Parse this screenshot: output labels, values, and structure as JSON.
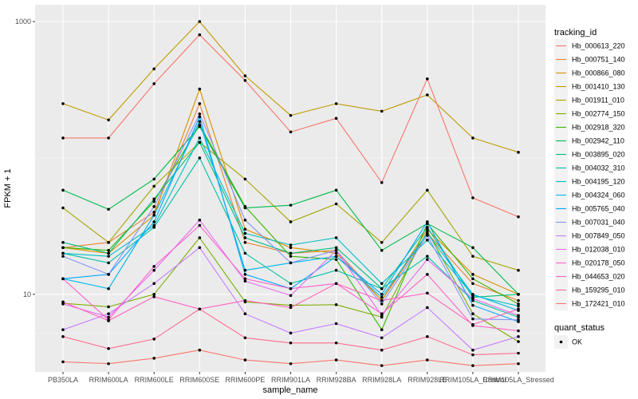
{
  "chart_data": {
    "type": "line",
    "title": "",
    "xlabel": "sample_name",
    "ylabel": "FPKM + 1",
    "y_scale": "log10",
    "ylim": [
      2.7,
      1000
    ],
    "y_ticks": [
      10,
      1000
    ],
    "y_tick_labels": [
      "10",
      "1000"
    ],
    "grid": true,
    "legend_placement": "right",
    "legend_title": "tracking_id",
    "categories": [
      "PB350LA",
      "RRIM600LA",
      "RRIM600LE",
      "RRIM600SE",
      "RRIM600PE",
      "RRIM901LA",
      "RRIM928BA",
      "RRIM928LA",
      "RRIM928LE",
      "RRIM105LA_Control",
      "RRIM105LA_Stressed"
    ],
    "series": [
      {
        "name": "Hb_000613_220",
        "color": "#F8766D",
        "values": [
          3.2,
          3.1,
          3.4,
          3.9,
          3.3,
          3.1,
          3.3,
          3.0,
          3.3,
          3.0,
          3.1
        ]
      },
      {
        "name": "Hb_000751_140",
        "color": "#EA8331",
        "values": [
          22,
          24,
          40,
          250,
          24,
          20,
          21,
          9,
          28,
          12,
          9
        ]
      },
      {
        "name": "Hb_000866_080",
        "color": "#D89000",
        "values": [
          22,
          20,
          38,
          320,
          30,
          22,
          20,
          9,
          30,
          14,
          10
        ]
      },
      {
        "name": "Hb_001410_130",
        "color": "#C09B00",
        "values": [
          250,
          190,
          450,
          1000,
          400,
          205,
          250,
          220,
          290,
          140,
          110
        ]
      },
      {
        "name": "Hb_001911_010",
        "color": "#A3A500",
        "values": [
          43,
          24,
          62,
          130,
          70,
          34,
          46,
          24,
          58,
          19,
          15
        ]
      },
      {
        "name": "Hb_002774_150",
        "color": "#7CAE00",
        "values": [
          8.6,
          8.1,
          10,
          26,
          8.8,
          8.3,
          8.4,
          6.8,
          29,
          7.2,
          4.5
        ]
      },
      {
        "name": "Hb_002918_320",
        "color": "#39B600",
        "values": [
          22,
          21,
          48,
          175,
          44,
          19,
          18,
          5.5,
          33,
          13,
          8.5
        ]
      },
      {
        "name": "Hb_002942_110",
        "color": "#00BB4E",
        "values": [
          58,
          42,
          70,
          170,
          43,
          45,
          58,
          21,
          33,
          22,
          10
        ]
      },
      {
        "name": "Hb_003895_020",
        "color": "#00BF7D",
        "values": [
          24,
          20,
          50,
          130,
          26,
          20,
          22,
          11,
          31,
          9.5,
          10
        ]
      },
      {
        "name": "Hb_004032_310",
        "color": "#00C1A3",
        "values": [
          20,
          17,
          31,
          100,
          20,
          12,
          15,
          11,
          19,
          9,
          6.8
        ]
      },
      {
        "name": "Hb_004195_120",
        "color": "#00BFC4",
        "values": [
          20,
          19,
          32,
          140,
          28,
          23,
          26,
          12,
          25,
          9.8,
          8.2
        ]
      },
      {
        "name": "Hb_004324_060",
        "color": "#00B8E7",
        "values": [
          13,
          11,
          38,
          185,
          15,
          17,
          19,
          9.5,
          28,
          10,
          7.6
        ]
      },
      {
        "name": "Hb_005765_040",
        "color": "#00A9FF",
        "values": [
          13,
          14,
          34,
          200,
          14,
          11,
          19,
          10,
          34,
          8.3,
          6.3
        ]
      },
      {
        "name": "Hb_007031_040",
        "color": "#8494FF",
        "values": [
          19,
          14,
          44,
          210,
          35,
          17,
          21,
          8.5,
          27,
          6.6,
          6.5
        ]
      },
      {
        "name": "Hb_007849_050",
        "color": "#C77CFF",
        "values": [
          5.5,
          7.2,
          12,
          22,
          7.2,
          5.2,
          6.1,
          4.8,
          8,
          3.9,
          4.9
        ]
      },
      {
        "name": "Hb_012038_010",
        "color": "#E76BF3",
        "values": [
          8.5,
          6.8,
          15,
          35,
          12.5,
          9.8,
          21,
          7,
          18,
          9.3,
          7
        ]
      },
      {
        "name": "Hb_020178_050",
        "color": "#FF61CC",
        "values": [
          13,
          6.5,
          16,
          32,
          13,
          11,
          12,
          7.2,
          14,
          5.9,
          5.4
        ]
      },
      {
        "name": "Hb_044653_020",
        "color": "#FF62BC",
        "values": [
          8.8,
          6.4,
          9.6,
          7.8,
          9,
          8.0,
          12,
          9.0,
          10.2,
          6.0,
          7.8
        ]
      },
      {
        "name": "Hb_159295_010",
        "color": "#FF6C91",
        "values": [
          4.9,
          4.0,
          4.7,
          7.8,
          4.8,
          4.4,
          4.4,
          3.9,
          4.9,
          3.6,
          3.7
        ]
      },
      {
        "name": "Hb_172421_010",
        "color": "#F8766D",
        "values": [
          140,
          140,
          350,
          800,
          370,
          155,
          195,
          66,
          380,
          51,
          37
        ]
      }
    ],
    "quant_status_legend": {
      "title": "quant_status",
      "items": [
        "OK"
      ]
    }
  }
}
